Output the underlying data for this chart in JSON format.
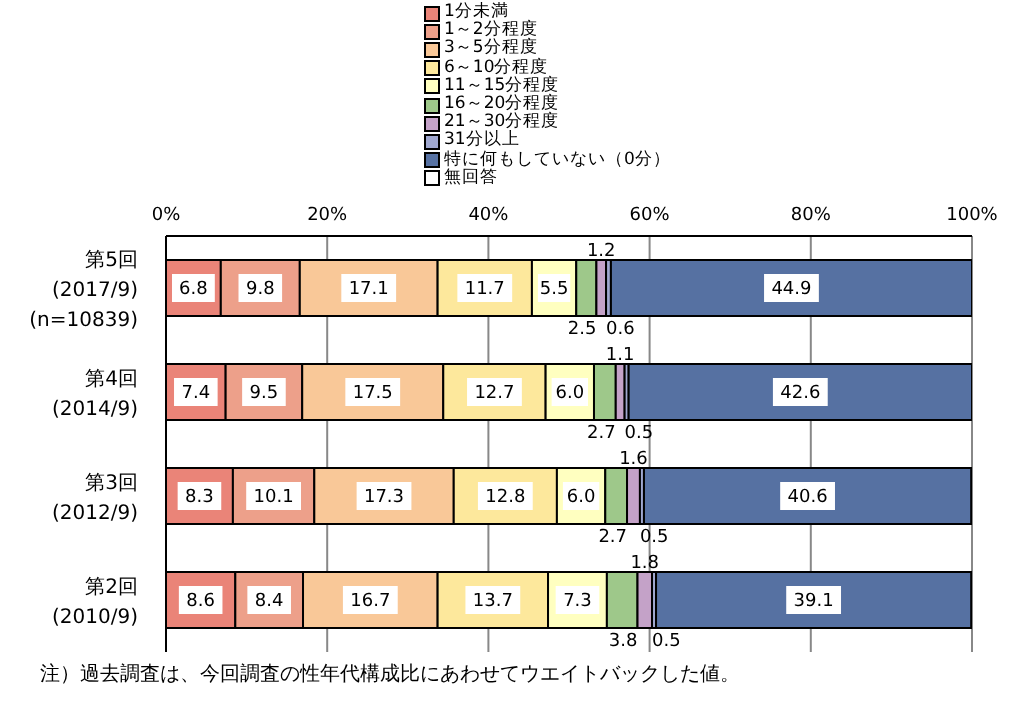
{
  "chart_data": {
    "type": "bar",
    "orientation": "horizontal",
    "stacked": true,
    "legend": "top",
    "grid": "x",
    "categories": [
      "第5回\n(2017/9)\n(n=10839)",
      "第4回\n(2014/9)",
      "第3回\n(2012/9)",
      "第2回\n(2010/9)"
    ],
    "xlim": [
      0,
      100
    ],
    "xticks": [
      {
        "value": 0,
        "label": "0%"
      },
      {
        "value": 20,
        "label": "20%"
      },
      {
        "value": 40,
        "label": "40%"
      },
      {
        "value": 60,
        "label": "60%"
      },
      {
        "value": 80,
        "label": "80%"
      },
      {
        "value": 100,
        "label": "100%"
      }
    ],
    "series": [
      {
        "name": "1分未満",
        "color": "#ea8478",
        "values": [
          6.8,
          7.4,
          8.3,
          8.6
        ],
        "value_labels": [
          "6.8",
          "7.4",
          "8.3",
          "8.6"
        ]
      },
      {
        "name": "1～2分程度",
        "color": "#eda08a",
        "values": [
          9.8,
          9.5,
          10.1,
          8.4
        ],
        "value_labels": [
          "9.8",
          "9.5",
          "10.1",
          "8.4"
        ]
      },
      {
        "name": "3～5分程度",
        "color": "#f9c898",
        "values": [
          17.1,
          17.5,
          17.3,
          16.7
        ],
        "value_labels": [
          "17.1",
          "17.5",
          "17.3",
          "16.7"
        ]
      },
      {
        "name": "6～10分程度",
        "color": "#fde89c",
        "values": [
          11.7,
          12.7,
          12.8,
          13.7
        ],
        "value_labels": [
          "11.7",
          "12.7",
          "12.8",
          "13.7"
        ]
      },
      {
        "name": "11～15分程度",
        "color": "#ffffc0",
        "values": [
          5.5,
          6.0,
          6.0,
          7.3
        ],
        "value_labels": [
          "5.5",
          "6.0",
          "6.0",
          "7.3"
        ]
      },
      {
        "name": "16～20分程度",
        "color": "#9ec88a",
        "values": [
          2.5,
          2.7,
          2.7,
          3.8
        ],
        "value_labels": [
          "2.5",
          "2.7",
          "2.7",
          "3.8"
        ]
      },
      {
        "name": "21～30分程度",
        "color": "#c4a2c8",
        "values": [
          1.2,
          1.1,
          1.6,
          1.8
        ],
        "value_labels": [
          "1.2",
          "1.1",
          "1.6",
          "1.8"
        ]
      },
      {
        "name": "31分以上",
        "color": "#a0a8d0",
        "values": [
          0.6,
          0.5,
          0.5,
          0.5
        ],
        "value_labels": [
          "0.6",
          "0.5",
          "0.5",
          "0.5"
        ]
      },
      {
        "name": "特に何もしていない（0分）",
        "color": "#5671a2",
        "values": [
          44.9,
          42.6,
          40.6,
          39.1
        ],
        "value_labels": [
          "44.9",
          "42.6",
          "40.6",
          "39.1"
        ]
      },
      {
        "name": "無回答",
        "color": "#ffffff",
        "values": [
          null,
          null,
          null,
          null
        ]
      }
    ],
    "annotations": [
      "注）過去調査は、今回調査の性年代構成比にあわせてウエイトバックした値。"
    ]
  }
}
